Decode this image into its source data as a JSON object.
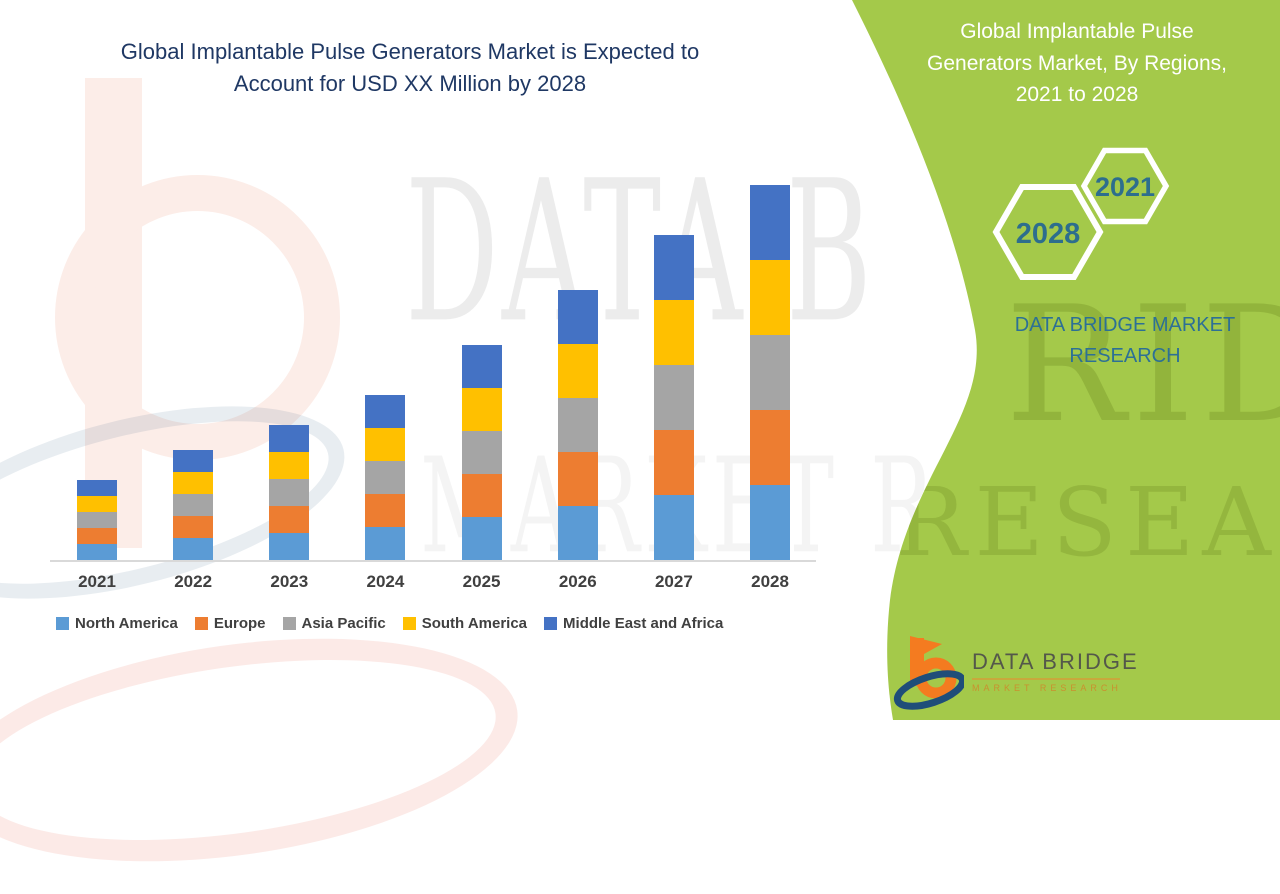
{
  "header": {
    "title_line1": "Global Implantable Pulse Generators Market is Expected to",
    "title_line2": "Account for USD XX Million by 2028",
    "title_color": "#1F3864"
  },
  "chart_data": {
    "type": "bar",
    "stacked": true,
    "title": "Global Implantable Pulse Generators Market is Expected to Account for USD XX Million by 2028",
    "xlabel": "",
    "ylabel": "",
    "categories": [
      "2021",
      "2022",
      "2023",
      "2024",
      "2025",
      "2026",
      "2027",
      "2028"
    ],
    "series": [
      {
        "name": "North America",
        "color": "#5B9BD5",
        "values": [
          16,
          22,
          27,
          33,
          43,
          54,
          65,
          75
        ]
      },
      {
        "name": "Europe",
        "color": "#ED7D31",
        "values": [
          16,
          22,
          27,
          33,
          43,
          54,
          65,
          75
        ]
      },
      {
        "name": "Asia Pacific",
        "color": "#A5A5A5",
        "values": [
          16,
          22,
          27,
          33,
          43,
          54,
          65,
          75
        ]
      },
      {
        "name": "South America",
        "color": "#FFC000",
        "values": [
          16,
          22,
          27,
          33,
          43,
          54,
          65,
          75
        ]
      },
      {
        "name": "Middle East and Africa",
        "color": "#4472C4",
        "values": [
          16,
          22,
          27,
          33,
          43,
          54,
          65,
          75
        ]
      }
    ],
    "totals": [
      80,
      110,
      135,
      165,
      215,
      270,
      325,
      375
    ],
    "value_units": "relative index (actual values shown as USD XX Million placeholder, no y-axis displayed)",
    "ylim": [
      0,
      380
    ],
    "grid": false,
    "y_axis_visible": false,
    "legend_position": "bottom"
  },
  "side_panel": {
    "bg_color": "#A4C94A",
    "title": "Global Implantable Pulse Generators Market, By Regions, 2021 to 2028",
    "hexagon_years": [
      "2021",
      "2028"
    ],
    "hexagon_text_color": "#2D6E8D",
    "brand_text": "DATA BRIDGE MARKET RESEARCH"
  },
  "footer_logo": {
    "name": "DATA BRIDGE",
    "subtitle": "MARKET RESEARCH"
  },
  "watermarks": {
    "white_area_text_1": "DATA B",
    "white_area_text_2": "MARKET R",
    "panel_text_1": "RIDGE",
    "panel_text_2": "RESEARCH"
  }
}
